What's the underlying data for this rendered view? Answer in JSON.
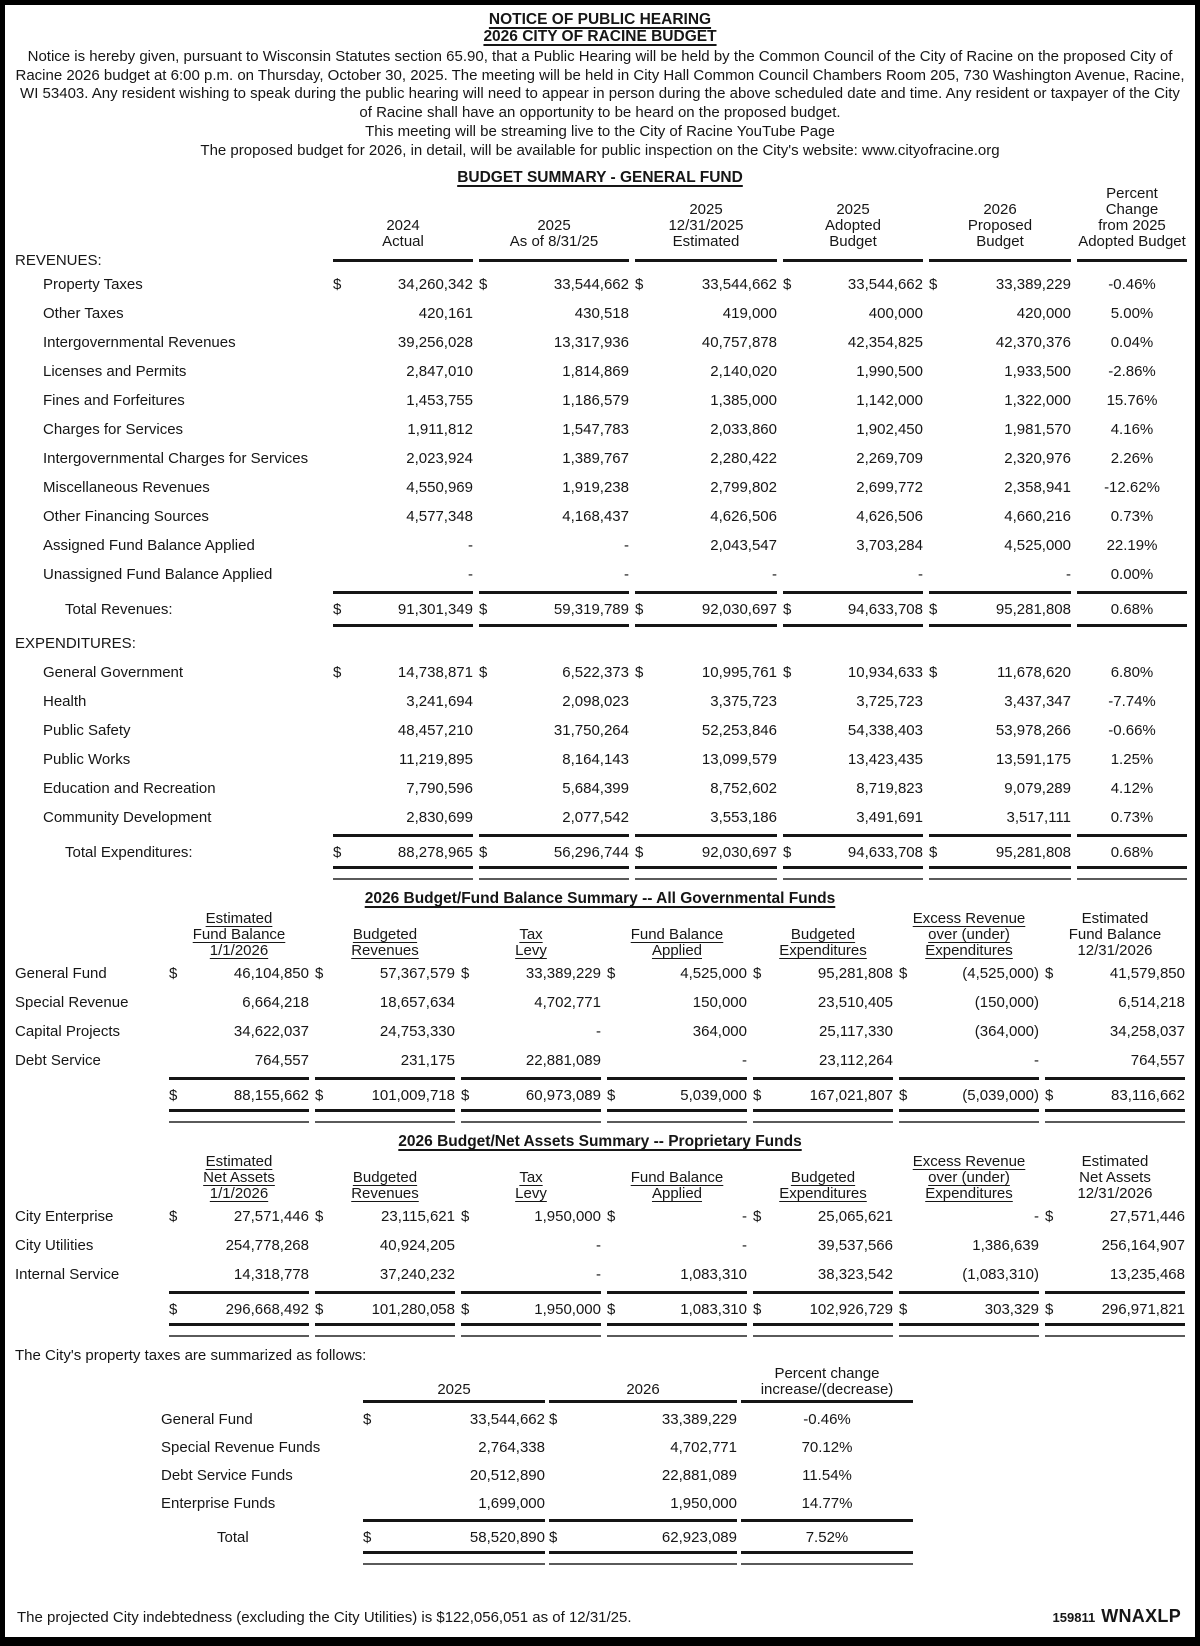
{
  "header": {
    "title1": "NOTICE OF PUBLIC HEARING",
    "title2": "2026 CITY OF RACINE BUDGET",
    "notice": "Notice is hereby given, pursuant to Wisconsin Statutes section 65.90, that a Public Hearing will be held by the Common Council of the City of Racine on the proposed City of Racine 2026 budget at 6:00 p.m. on Thursday, October 30, 2025. The meeting will be held in City Hall Common Council Chambers Room 205, 730 Washington Avenue, Racine, WI 53403. Any resident wishing to speak during the public hearing will need to appear in person during the above scheduled date and time. Any resident or taxpayer of the City of Racine shall have an opportunity to be heard on the proposed budget.",
    "streaming": "This meeting will be streaming live to the City of Racine YouTube Page",
    "inspection": "The proposed budget for 2026, in detail, will be available for public inspection on the City's website: www.cityofracine.org"
  },
  "gf": {
    "title": "BUDGET SUMMARY - GENERAL FUND",
    "revenues_label": "REVENUES:",
    "expenditures_label": "EXPENDITURES:",
    "h": {
      "c1": {
        "l1": "2024",
        "l2": "Actual"
      },
      "c2": {
        "l1": "2025",
        "l2": "As of 8/31/25"
      },
      "c3": {
        "l1": "2025",
        "l2": "12/31/2025",
        "l3": "Estimated"
      },
      "c4": {
        "l1": "2025",
        "l2": "Adopted",
        "l3": "Budget"
      },
      "c5": {
        "l1": "2026",
        "l2": "Proposed",
        "l3": "Budget"
      },
      "c6": {
        "l1": "Percent",
        "l2": "Change",
        "l3": "from 2025",
        "l4": "Adopted Budget"
      }
    },
    "rev": [
      {
        "t": "Property Taxes",
        "d0": "$",
        "v0": "34,260,342",
        "d1": "$",
        "v1": "33,544,662",
        "d2": "$",
        "v2": "33,544,662",
        "d3": "$",
        "v3": "33,544,662",
        "d4": "$",
        "v4": "33,389,229",
        "p": "-0.46%"
      },
      {
        "t": "Other Taxes",
        "v0": "420,161",
        "v1": "430,518",
        "v2": "419,000",
        "v3": "400,000",
        "v4": "420,000",
        "p": "5.00%"
      },
      {
        "t": "Intergovernmental Revenues",
        "v0": "39,256,028",
        "v1": "13,317,936",
        "v2": "40,757,878",
        "v3": "42,354,825",
        "v4": "42,370,376",
        "p": "0.04%"
      },
      {
        "t": "Licenses and Permits",
        "v0": "2,847,010",
        "v1": "1,814,869",
        "v2": "2,140,020",
        "v3": "1,990,500",
        "v4": "1,933,500",
        "p": "-2.86%"
      },
      {
        "t": "Fines and Forfeitures",
        "v0": "1,453,755",
        "v1": "1,186,579",
        "v2": "1,385,000",
        "v3": "1,142,000",
        "v4": "1,322,000",
        "p": "15.76%"
      },
      {
        "t": "Charges for Services",
        "v0": "1,911,812",
        "v1": "1,547,783",
        "v2": "2,033,860",
        "v3": "1,902,450",
        "v4": "1,981,570",
        "p": "4.16%"
      },
      {
        "t": "Intergovernmental Charges for Services",
        "v0": "2,023,924",
        "v1": "1,389,767",
        "v2": "2,280,422",
        "v3": "2,269,709",
        "v4": "2,320,976",
        "p": "2.26%"
      },
      {
        "t": "Miscellaneous Revenues",
        "v0": "4,550,969",
        "v1": "1,919,238",
        "v2": "2,799,802",
        "v3": "2,699,772",
        "v4": "2,358,941",
        "p": "-12.62%"
      },
      {
        "t": "Other Financing Sources",
        "v0": "4,577,348",
        "v1": "4,168,437",
        "v2": "4,626,506",
        "v3": "4,626,506",
        "v4": "4,660,216",
        "p": "0.73%"
      },
      {
        "t": "Assigned Fund Balance Applied",
        "v0": "-",
        "v1": "-",
        "v2": "2,043,547",
        "v3": "3,703,284",
        "v4": "4,525,000",
        "p": "22.19%"
      },
      {
        "t": "Unassigned Fund Balance Applied",
        "v0": "-",
        "v1": "-",
        "v2": "-",
        "v3": "-",
        "v4": "-",
        "p": "0.00%"
      }
    ],
    "rev_total": {
      "t": "Total Revenues:",
      "d0": "$",
      "v0": "91,301,349",
      "d1": "$",
      "v1": "59,319,789",
      "d2": "$",
      "v2": "92,030,697",
      "d3": "$",
      "v3": "94,633,708",
      "d4": "$",
      "v4": "95,281,808",
      "p": "0.68%"
    },
    "exp": [
      {
        "t": "General Government",
        "d0": "$",
        "v0": "14,738,871",
        "d1": "$",
        "v1": "6,522,373",
        "d2": "$",
        "v2": "10,995,761",
        "d3": "$",
        "v3": "10,934,633",
        "d4": "$",
        "v4": "11,678,620",
        "p": "6.80%"
      },
      {
        "t": "Health",
        "v0": "3,241,694",
        "v1": "2,098,023",
        "v2": "3,375,723",
        "v3": "3,725,723",
        "v4": "3,437,347",
        "p": "-7.74%"
      },
      {
        "t": "Public Safety",
        "v0": "48,457,210",
        "v1": "31,750,264",
        "v2": "52,253,846",
        "v3": "54,338,403",
        "v4": "53,978,266",
        "p": "-0.66%"
      },
      {
        "t": "Public Works",
        "v0": "11,219,895",
        "v1": "8,164,143",
        "v2": "13,099,579",
        "v3": "13,423,435",
        "v4": "13,591,175",
        "p": "1.25%"
      },
      {
        "t": "Education and Recreation",
        "v0": "7,790,596",
        "v1": "5,684,399",
        "v2": "8,752,602",
        "v3": "8,719,823",
        "v4": "9,079,289",
        "p": "4.12%"
      },
      {
        "t": "Community Development",
        "v0": "2,830,699",
        "v1": "2,077,542",
        "v2": "3,553,186",
        "v3": "3,491,691",
        "v4": "3,517,111",
        "p": "0.73%"
      }
    ],
    "exp_total": {
      "t": "Total Expenditures:",
      "d0": "$",
      "v0": "88,278,965",
      "d1": "$",
      "v1": "56,296,744",
      "d2": "$",
      "v2": "92,030,697",
      "d3": "$",
      "v3": "94,633,708",
      "d4": "$",
      "v4": "95,281,808",
      "p": "0.68%"
    }
  },
  "gov": {
    "title": "2026 Budget/Fund Balance Summary -- All Governmental Funds",
    "h": {
      "c1": {
        "l1": "Estimated",
        "l2": "Fund Balance",
        "l3": "1/1/2026"
      },
      "c2": {
        "l1": "Budgeted",
        "l2": "Revenues"
      },
      "c3": {
        "l1": "Tax",
        "l2": "Levy"
      },
      "c4": {
        "l1": "Fund Balance",
        "l2": "Applied"
      },
      "c5": {
        "l1": "Budgeted",
        "l2": "Expenditures"
      },
      "c6": {
        "l1": "Excess Revenue",
        "l2": "over (under)",
        "l3": "Expenditures"
      },
      "c7": {
        "l1": "Estimated",
        "l2": "Fund Balance",
        "l3": "12/31/2026"
      }
    },
    "rows": [
      {
        "t": "General Fund",
        "d0": "$",
        "v0": "46,104,850",
        "d1": "$",
        "v1": "57,367,579",
        "d2": "$",
        "v2": "33,389,229",
        "d3": "$",
        "v3": "4,525,000",
        "d4": "$",
        "v4": "95,281,808",
        "d5": "$",
        "v5": "(4,525,000)",
        "d6": "$",
        "v6": "41,579,850"
      },
      {
        "t": "Special Revenue",
        "v0": "6,664,218",
        "v1": "18,657,634",
        "v2": "4,702,771",
        "v3": "150,000",
        "v4": "23,510,405",
        "v5": "(150,000)",
        "v6": "6,514,218"
      },
      {
        "t": "Capital Projects",
        "v0": "34,622,037",
        "v1": "24,753,330",
        "v2": "-",
        "v3": "364,000",
        "v4": "25,117,330",
        "v5": "(364,000)",
        "v6": "34,258,037"
      },
      {
        "t": "Debt Service",
        "v0": "764,557",
        "v1": "231,175",
        "v2": "22,881,089",
        "v3": "-",
        "v4": "23,112,264",
        "v5": "-",
        "v6": "764,557"
      }
    ],
    "total": {
      "d0": "$",
      "v0": "88,155,662",
      "d1": "$",
      "v1": "101,009,718",
      "d2": "$",
      "v2": "60,973,089",
      "d3": "$",
      "v3": "5,039,000",
      "d4": "$",
      "v4": "167,021,807",
      "d5": "$",
      "v5": "(5,039,000)",
      "d6": "$",
      "v6": "83,116,662"
    }
  },
  "prop": {
    "title": "2026 Budget/Net Assets Summary -- Proprietary Funds",
    "h": {
      "c1": {
        "l1": "Estimated",
        "l2": "Net Assets",
        "l3": "1/1/2026"
      },
      "c2": {
        "l1": "Budgeted",
        "l2": "Revenues"
      },
      "c3": {
        "l1": "Tax",
        "l2": "Levy"
      },
      "c4": {
        "l1": "Fund Balance",
        "l2": "Applied"
      },
      "c5": {
        "l1": "Budgeted",
        "l2": "Expenditures"
      },
      "c6": {
        "l1": "Excess Revenue",
        "l2": "over (under)",
        "l3": "Expenditures"
      },
      "c7": {
        "l1": "Estimated",
        "l2": "Net Assets",
        "l3": "12/31/2026"
      }
    },
    "rows": [
      {
        "t": "City Enterprise",
        "d0": "$",
        "v0": "27,571,446",
        "d1": "$",
        "v1": "23,115,621",
        "d2": "$",
        "v2": "1,950,000",
        "d3": "$",
        "v3": "-",
        "d4": "$",
        "v4": "25,065,621",
        "v5": "-",
        "d6": "$",
        "v6": "27,571,446"
      },
      {
        "t": "City Utilities",
        "v0": "254,778,268",
        "v1": "40,924,205",
        "v2": "-",
        "v3": "-",
        "v4": "39,537,566",
        "v5": "1,386,639",
        "v6": "256,164,907"
      },
      {
        "t": "Internal Service",
        "v0": "14,318,778",
        "v1": "37,240,232",
        "v2": "-",
        "v3": "1,083,310",
        "v4": "38,323,542",
        "v5": "(1,083,310)",
        "v6": "13,235,468"
      }
    ],
    "total": {
      "d0": "$",
      "v0": "296,668,492",
      "d1": "$",
      "v1": "101,280,058",
      "d2": "$",
      "v2": "1,950,000",
      "d3": "$",
      "v3": "1,083,310",
      "d4": "$",
      "v4": "102,926,729",
      "d5": "$",
      "v5": "303,329",
      "d6": "$",
      "v6": "296,971,821"
    }
  },
  "tax": {
    "intro": "The City's property taxes are summarized as follows:",
    "h": {
      "c1": "2025",
      "c2": "2026",
      "p1": "Percent change",
      "p2": "increase/(decrease)"
    },
    "rows": [
      {
        "t": "General Fund",
        "d0": "$",
        "v0": "33,544,662",
        "d1": "$",
        "v1": "33,389,229",
        "p": "-0.46%"
      },
      {
        "t": "Special Revenue Funds",
        "v0": "2,764,338",
        "v1": "4,702,771",
        "p": "70.12%"
      },
      {
        "t": "Debt Service Funds",
        "v0": "20,512,890",
        "v1": "22,881,089",
        "p": "11.54%"
      },
      {
        "t": "Enterprise Funds",
        "v0": "1,699,000",
        "v1": "1,950,000",
        "p": "14.77%"
      }
    ],
    "total": {
      "t": "Total",
      "d0": "$",
      "v0": "58,520,890",
      "d1": "$",
      "v1": "62,923,089",
      "p": "7.52%"
    }
  },
  "footer": {
    "note": "The projected City indebtedness (excluding the City Utilities) is $122,056,051 as of 12/31/25.",
    "num": "159811",
    "code": "WNAXLP"
  }
}
